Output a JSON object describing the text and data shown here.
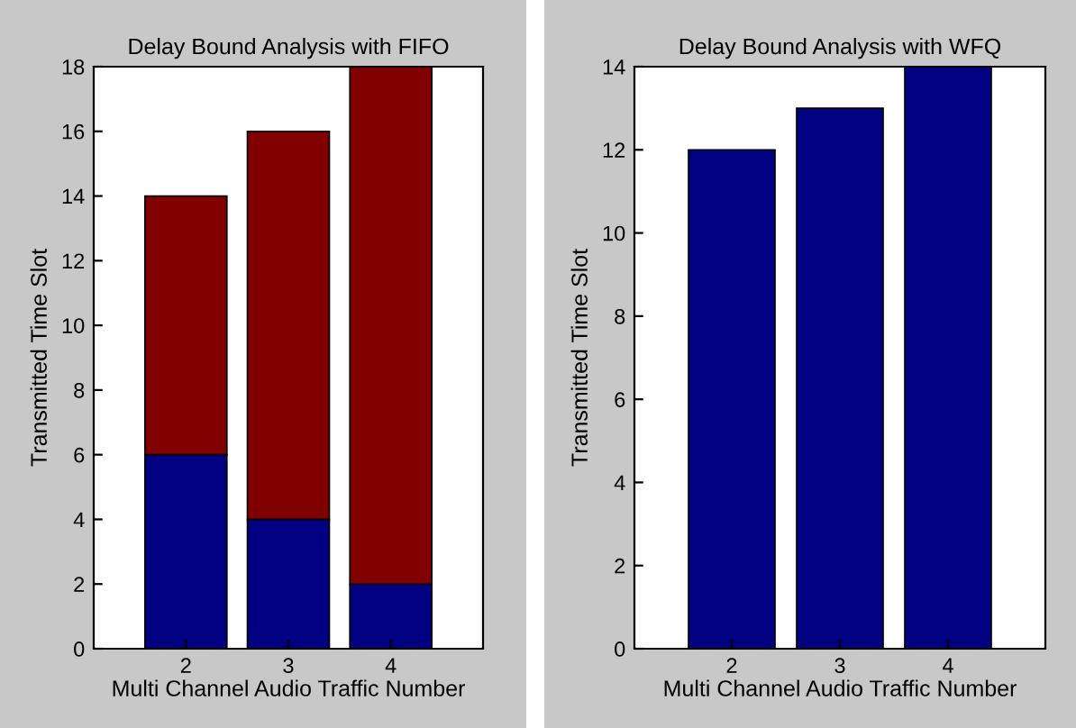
{
  "chart_data": [
    {
      "type": "bar",
      "title": "Delay Bound Analysis with FIFO",
      "xlabel": "Multi Channel Audio Traffic Number",
      "ylabel": "Transmitted Time Slot",
      "categories": [
        "2",
        "3",
        "4"
      ],
      "stacked": true,
      "series": [
        {
          "color": "#000080",
          "values": [
            6,
            4,
            2
          ]
        },
        {
          "color": "#800000",
          "values": [
            8,
            12,
            16
          ]
        }
      ],
      "ylim": [
        0,
        18
      ],
      "yticks": [
        0,
        2,
        4,
        6,
        8,
        10,
        12,
        14,
        16,
        18
      ],
      "grid": false
    },
    {
      "type": "bar",
      "title": "Delay Bound Analysis with WFQ",
      "xlabel": "Multi Channel Audio Traffic Number",
      "ylabel": "Transmitted Time Slot",
      "categories": [
        "2",
        "3",
        "4"
      ],
      "series": [
        {
          "color": "#000080",
          "values": [
            12,
            13,
            14
          ]
        }
      ],
      "ylim": [
        0,
        14
      ],
      "yticks": [
        0,
        2,
        4,
        6,
        8,
        10,
        12,
        14
      ],
      "grid": false
    }
  ]
}
